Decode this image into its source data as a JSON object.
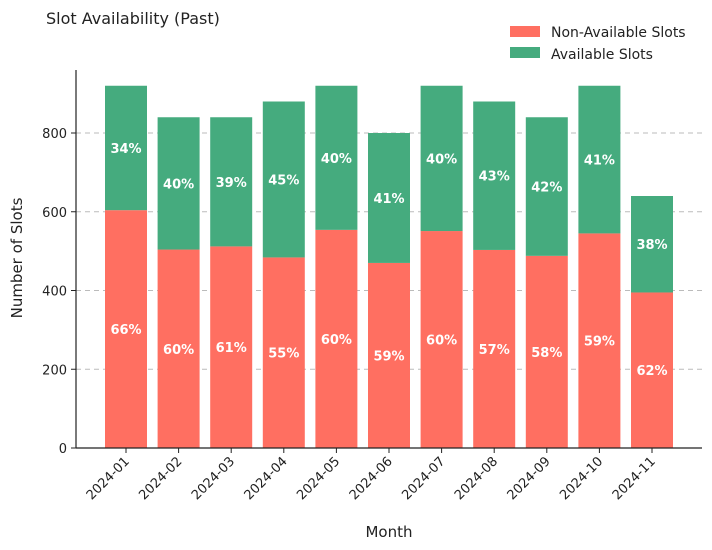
{
  "chart_data": {
    "type": "bar",
    "stacked": true,
    "title": "Slot Availability (Past)",
    "xlabel": "Month",
    "ylabel": "Number of Slots",
    "ylim": [
      0,
      960
    ],
    "yticks": [
      0,
      200,
      400,
      600,
      800
    ],
    "grid": "y-dashed",
    "legend_position": "top-right",
    "categories": [
      "2024-01",
      "2024-02",
      "2024-03",
      "2024-04",
      "2024-05",
      "2024-06",
      "2024-07",
      "2024-08",
      "2024-09",
      "2024-10",
      "2024-11"
    ],
    "series": [
      {
        "name": "Non-Available Slots",
        "color": "#ff6f61",
        "values": [
          604,
          504,
          512,
          484,
          554,
          470,
          551,
          503,
          488,
          545,
          395
        ],
        "labels": [
          "66%",
          "60%",
          "61%",
          "55%",
          "60%",
          "59%",
          "60%",
          "57%",
          "58%",
          "59%",
          "62%"
        ]
      },
      {
        "name": "Available Slots",
        "color": "#45ab7e",
        "values": [
          316,
          336,
          328,
          396,
          366,
          330,
          369,
          377,
          352,
          375,
          245
        ],
        "labels": [
          "34%",
          "40%",
          "39%",
          "45%",
          "40%",
          "41%",
          "40%",
          "43%",
          "42%",
          "41%",
          "38%"
        ]
      }
    ]
  }
}
